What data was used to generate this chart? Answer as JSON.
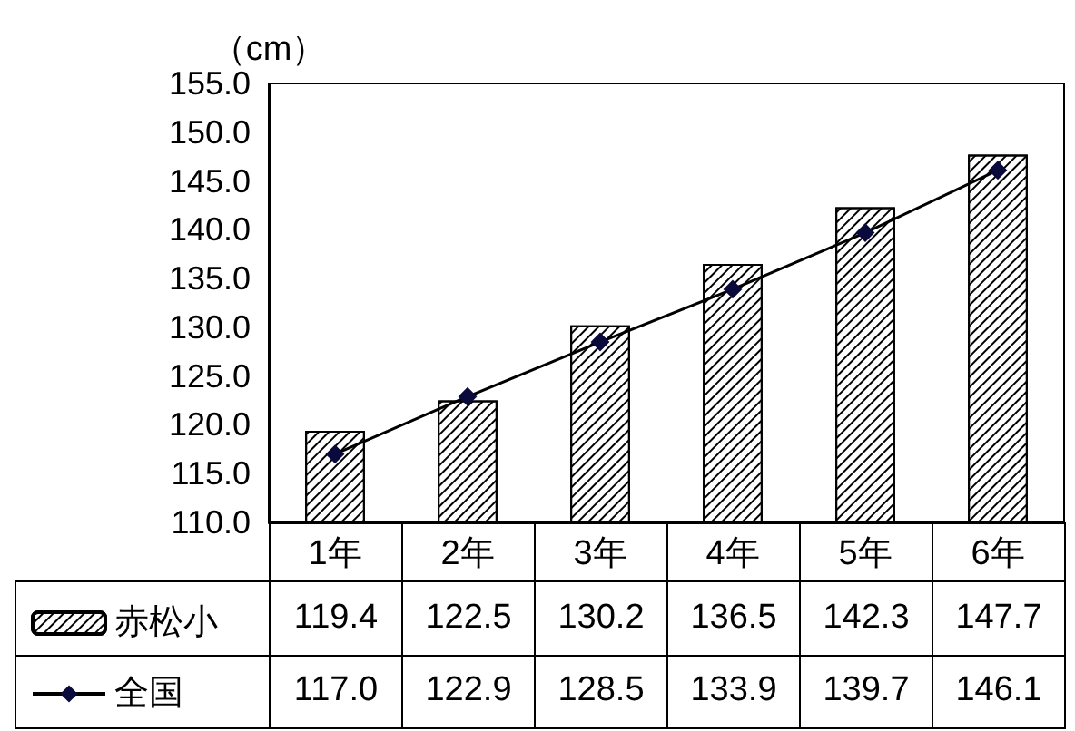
{
  "chart_data": {
    "type": "bar",
    "ylabel": "（cm）",
    "categories": [
      "1年",
      "2年",
      "3年",
      "4年",
      "5年",
      "6年"
    ],
    "series": [
      {
        "name": "赤松小",
        "color": "#ffffff",
        "values": [
          119.4,
          122.5,
          130.2,
          136.5,
          142.3,
          147.7
        ]
      },
      {
        "name": "全国",
        "type": "line",
        "color": "#000000",
        "marker": "diamond",
        "values": [
          117.0,
          122.9,
          128.5,
          133.9,
          139.7,
          146.1
        ],
        "value_labels": [
          "117.0",
          "122.9",
          "128.5",
          "133.9",
          "139.7",
          "146.1"
        ]
      }
    ],
    "ylim": [
      110,
      155
    ],
    "yticks": [
      {
        "value": 110,
        "label": "110.0"
      },
      {
        "value": 115,
        "label": "115.0"
      },
      {
        "value": 120,
        "label": "120.0"
      },
      {
        "value": 125,
        "label": "125.0"
      },
      {
        "value": 130,
        "label": "130.0"
      },
      {
        "value": 135,
        "label": "135.0"
      },
      {
        "value": 140,
        "label": "140.0"
      },
      {
        "value": 145,
        "label": "145.0"
      },
      {
        "value": 150,
        "label": "150.0"
      },
      {
        "value": 155,
        "label": "155.0"
      }
    ],
    "grid": false,
    "legend": "bottom left",
    "data_labels": true
  }
}
